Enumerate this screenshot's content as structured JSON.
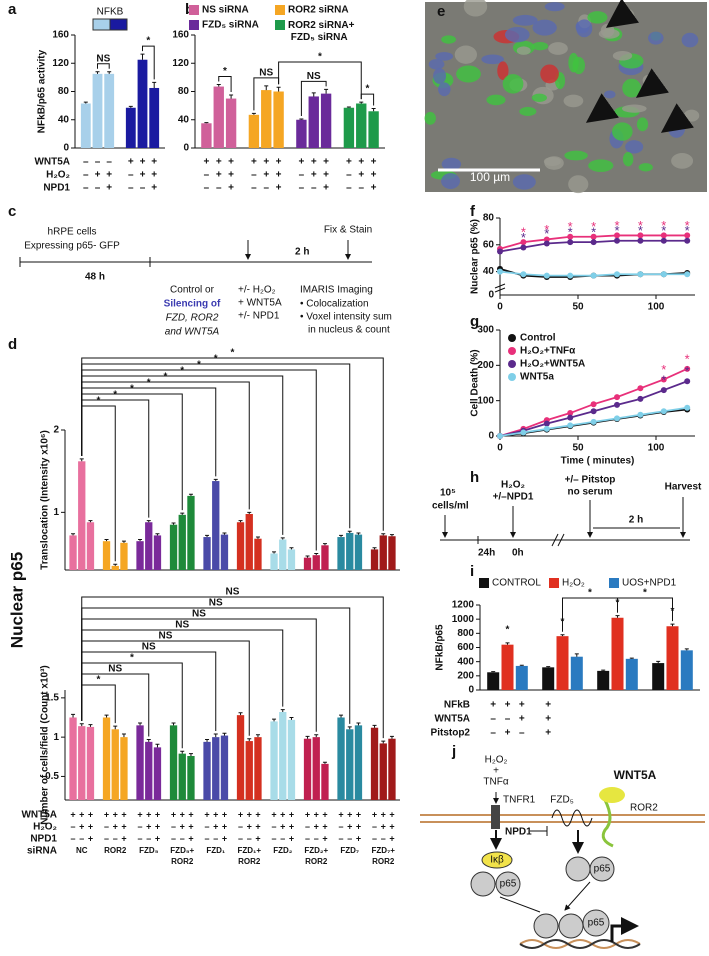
{
  "panel_labels": [
    "a",
    "b",
    "c",
    "d",
    "e",
    "f",
    "g",
    "h",
    "i",
    "j"
  ],
  "side_label": "Nuclear p65",
  "chart_data": [
    {
      "type": "bar",
      "ylabel": "NFkB/p65 activity",
      "ylim": [
        0,
        160
      ],
      "yticks": [
        0,
        40,
        80,
        120,
        160
      ],
      "values": [
        63,
        105,
        105,
        57,
        125,
        85
      ],
      "errors": [
        2,
        3,
        3,
        2,
        8,
        8
      ],
      "colors": [
        "#a8d0ea",
        "#a8d0ea",
        "#a8d0ea",
        "#1a1aa0",
        "#1a1aa0",
        "#1a1aa0"
      ],
      "legend_title": "NFKB",
      "annotations": [
        "NS",
        "*"
      ],
      "conditions": [
        {
          "label": "WNT5A",
          "marks": [
            "–",
            "–",
            "–",
            "+",
            "+",
            "+"
          ]
        },
        {
          "label": "H₂O₂",
          "marks": [
            "–",
            "+",
            "+",
            "–",
            "+",
            "+"
          ]
        },
        {
          "label": "NPD1",
          "marks": [
            "–",
            "–",
            "+",
            "–",
            "–",
            "+"
          ]
        }
      ]
    },
    {
      "type": "bar",
      "ylim": [
        0,
        160
      ],
      "yticks": [
        0,
        40,
        80,
        120,
        160
      ],
      "series": [
        {
          "name": "NS siRNA",
          "color": "#d0609a",
          "values": [
            35,
            87,
            70
          ],
          "errors": [
            1,
            3,
            5
          ]
        },
        {
          "name": "ROR2 siRNA",
          "color": "#f5a623",
          "values": [
            47,
            82,
            80
          ],
          "errors": [
            2,
            6,
            6
          ]
        },
        {
          "name": "FZD₅ siRNA",
          "color": "#6a2a9a",
          "values": [
            40,
            73,
            77
          ],
          "errors": [
            1,
            5,
            6
          ]
        },
        {
          "name": "ROR2 siRNA+ FZD₅ siRNA",
          "color": "#1e9a4a",
          "values": [
            57,
            63,
            52
          ],
          "errors": [
            1,
            2,
            4
          ]
        }
      ],
      "annotations": [
        "*",
        "NS",
        "NS",
        "*",
        "*"
      ],
      "conditions": [
        {
          "marks": [
            "+",
            "+",
            "+",
            "+",
            "+",
            "+",
            "+",
            "+",
            "+",
            "+",
            "+",
            "+"
          ]
        },
        {
          "marks": [
            "–",
            "+",
            "+",
            "–",
            "+",
            "+",
            "–",
            "+",
            "+",
            "–",
            "+",
            "+"
          ]
        },
        {
          "marks": [
            "–",
            "–",
            "+",
            "–",
            "–",
            "+",
            "–",
            "–",
            "+",
            "–",
            "–",
            "+"
          ]
        }
      ]
    },
    {
      "type": "bar",
      "ylabel": "Translocation (Intensity x10⁶)",
      "ylim": [
        0.3,
        2
      ],
      "yticks": [
        1,
        2
      ],
      "series": [
        {
          "color": "#e8709e",
          "values": [
            0.72,
            1.62,
            0.88
          ],
          "errors": [
            0.02,
            0.03,
            0.02
          ]
        },
        {
          "color": "#f5a623",
          "values": [
            0.65,
            0.35,
            0.63
          ],
          "errors": [
            0.02,
            0.02,
            0.02
          ]
        },
        {
          "color": "#7a2a9a",
          "values": [
            0.65,
            0.88,
            0.72
          ],
          "errors": [
            0.02,
            0.02,
            0.02
          ]
        },
        {
          "color": "#1e8a3a",
          "values": [
            0.85,
            0.97,
            1.2
          ],
          "errors": [
            0.02,
            0.02,
            0.02
          ]
        },
        {
          "color": "#4a4aa8",
          "values": [
            0.7,
            1.38,
            0.73
          ],
          "errors": [
            0.02,
            0.02,
            0.02
          ]
        },
        {
          "color": "#d43020",
          "values": [
            0.88,
            0.98,
            0.68
          ],
          "errors": [
            0.02,
            0.02,
            0.02
          ]
        },
        {
          "color": "#a8dce8",
          "values": [
            0.5,
            0.67,
            0.55
          ],
          "errors": [
            0.02,
            0.02,
            0.02
          ]
        },
        {
          "color": "#c02050",
          "values": [
            0.45,
            0.48,
            0.6
          ],
          "errors": [
            0.02,
            0.02,
            0.02
          ]
        },
        {
          "color": "#2a8aa0",
          "values": [
            0.7,
            0.75,
            0.73
          ],
          "errors": [
            0.02,
            0.02,
            0.02
          ]
        },
        {
          "color": "#a01a1a",
          "values": [
            0.55,
            0.72,
            0.71
          ],
          "errors": [
            0.02,
            0.02,
            0.02
          ]
        }
      ],
      "annotations": [
        "*",
        "*",
        "*",
        "*",
        "*",
        "*",
        "*",
        "*",
        "*"
      ]
    },
    {
      "type": "bar",
      "ylabel": "Number of cells/field (Count x10³)",
      "ylim": [
        0.2,
        1.6
      ],
      "yticks": [
        0.5,
        1,
        1.5
      ],
      "series": [
        {
          "name": "NC",
          "color": "#e8709e",
          "values": [
            1.25,
            1.14,
            1.13
          ],
          "errors": [
            0.04,
            0.03,
            0.03
          ]
        },
        {
          "name": "ROR2",
          "color": "#f5a623",
          "values": [
            1.25,
            1.1,
            1.0
          ],
          "errors": [
            0.03,
            0.04,
            0.04
          ]
        },
        {
          "name": "FZD₅",
          "color": "#7a2a9a",
          "values": [
            1.15,
            0.94,
            0.87
          ],
          "errors": [
            0.03,
            0.03,
            0.04
          ]
        },
        {
          "name": "FZD₅+ROR2",
          "color": "#1e8a3a",
          "values": [
            1.15,
            0.79,
            0.76
          ],
          "errors": [
            0.03,
            0.03,
            0.03
          ]
        },
        {
          "name": "FZD₁",
          "color": "#4a4aa8",
          "values": [
            0.94,
            1.0,
            1.02
          ],
          "errors": [
            0.03,
            0.04,
            0.03
          ]
        },
        {
          "name": "FZD₁+ROR2",
          "color": "#d43020",
          "values": [
            1.28,
            0.95,
            1.0
          ],
          "errors": [
            0.03,
            0.03,
            0.03
          ]
        },
        {
          "name": "FZD₂",
          "color": "#a8dce8",
          "values": [
            1.2,
            1.32,
            1.22
          ],
          "errors": [
            0.03,
            0.03,
            0.03
          ]
        },
        {
          "name": "FZD₂+ROR2",
          "color": "#c02050",
          "values": [
            0.98,
            1.0,
            0.66
          ],
          "errors": [
            0.03,
            0.03,
            0.02
          ]
        },
        {
          "name": "FZD₇",
          "color": "#2a8aa0",
          "values": [
            1.25,
            1.1,
            1.15
          ],
          "errors": [
            0.03,
            0.03,
            0.03
          ]
        },
        {
          "name": "FZD₇+ROR2",
          "color": "#a01a1a",
          "values": [
            1.12,
            0.92,
            0.98
          ],
          "errors": [
            0.03,
            0.03,
            0.03
          ]
        }
      ],
      "annotations": [
        "NS",
        "NS",
        "NS",
        "NS",
        "NS",
        "NS",
        "*",
        "NS",
        "*"
      ],
      "group_label": "siRNA",
      "conditions": [
        {
          "label": "WNT5A",
          "marks": [
            "+",
            "+",
            "+",
            "+",
            "+",
            "+",
            "+",
            "+",
            "+",
            "+",
            "+",
            "+",
            "+",
            "+",
            "+",
            "+",
            "+",
            "+",
            "+",
            "+",
            "+",
            "+",
            "+",
            "+",
            "+",
            "+",
            "+",
            "+",
            "+",
            "+"
          ]
        },
        {
          "label": "H₂O₂",
          "marks": [
            "–",
            "+",
            "+",
            "–",
            "+",
            "+",
            "–",
            "+",
            "+",
            "–",
            "+",
            "+",
            "–",
            "+",
            "+",
            "–",
            "+",
            "+",
            "–",
            "+",
            "+",
            "–",
            "+",
            "+",
            "–",
            "+",
            "+",
            "–",
            "+",
            "+"
          ]
        },
        {
          "label": "NPD1",
          "marks": [
            "–",
            "–",
            "+",
            "–",
            "–",
            "+",
            "–",
            "–",
            "+",
            "–",
            "–",
            "+",
            "–",
            "–",
            "+",
            "–",
            "–",
            "+",
            "–",
            "–",
            "+",
            "–",
            "–",
            "+",
            "–",
            "–",
            "+",
            "–",
            "–",
            "+"
          ]
        }
      ]
    },
    {
      "type": "line",
      "ylabel": "Nuclear p65 (%)",
      "xlim": [
        0,
        125
      ],
      "xticks": [
        0,
        50,
        100
      ],
      "ylim": [
        30,
        80
      ],
      "yticks": [
        40,
        60,
        80
      ],
      "ybreak_tick": 0,
      "significance": "*",
      "x": [
        0,
        15,
        30,
        45,
        60,
        75,
        90,
        105,
        120
      ],
      "series": [
        {
          "color": "#111111",
          "values": [
            42,
            37,
            36,
            36,
            37,
            37,
            38,
            38,
            39
          ]
        },
        {
          "color": "#e8307a",
          "values": [
            57,
            62,
            64,
            66,
            66,
            67,
            67,
            67,
            67
          ]
        },
        {
          "color": "#5b2a8c",
          "values": [
            55,
            58,
            61,
            62,
            62,
            63,
            63,
            63,
            63
          ]
        },
        {
          "color": "#7fcfe8",
          "values": [
            40,
            38,
            37,
            37,
            37,
            38,
            38,
            38,
            38
          ]
        }
      ]
    },
    {
      "type": "line",
      "ylabel": "Cell Death (%)",
      "xlabel": "Time ( minutes)",
      "xlim": [
        0,
        125
      ],
      "xticks": [
        0,
        50,
        100
      ],
      "ylim": [
        0,
        300
      ],
      "yticks": [
        0,
        100,
        200,
        300
      ],
      "significance": "*",
      "x": [
        0,
        15,
        30,
        45,
        60,
        75,
        90,
        105,
        120
      ],
      "series": [
        {
          "name": "Control",
          "color": "#111111",
          "values": [
            0,
            8,
            18,
            28,
            38,
            48,
            58,
            68,
            75
          ]
        },
        {
          "name": "H₂O₂+TNFα",
          "color": "#e8307a",
          "values": [
            0,
            20,
            45,
            65,
            90,
            110,
            135,
            160,
            190
          ]
        },
        {
          "name": "H₂O₂+WNT5A",
          "color": "#5b2a8c",
          "values": [
            0,
            15,
            35,
            52,
            70,
            88,
            105,
            130,
            155
          ]
        },
        {
          "name": "WNT5a",
          "color": "#7fcfe8",
          "values": [
            0,
            10,
            20,
            30,
            40,
            50,
            60,
            70,
            80
          ]
        }
      ]
    },
    {
      "type": "bar",
      "ylabel": "NFkB/p65",
      "ylim": [
        0,
        1200
      ],
      "yticks": [
        0,
        200,
        400,
        600,
        800,
        1000,
        1200
      ],
      "series": [
        {
          "name": "CONTROL",
          "color": "#111111",
          "values": [
            250,
            320,
            270,
            380
          ],
          "errors": [
            10,
            10,
            10,
            25
          ]
        },
        {
          "name": "H₂O₂",
          "color": "#e03020",
          "values": [
            640,
            760,
            1020,
            900
          ],
          "errors": [
            25,
            20,
            30,
            30
          ]
        },
        {
          "name": "UOS+NPD1",
          "color": "#2a7ac0",
          "values": [
            340,
            470,
            440,
            560
          ],
          "errors": [
            10,
            40,
            10,
            20
          ]
        }
      ],
      "annotations": [
        "*",
        "*",
        "*",
        "*",
        "*",
        "*"
      ],
      "conditions": [
        {
          "label": "NFkB",
          "marks": [
            "+",
            "+",
            "+",
            "+"
          ]
        },
        {
          "label": "WNT5A",
          "marks": [
            "–",
            "–",
            "+",
            "+"
          ]
        },
        {
          "label": "Pitstop2",
          "marks": [
            "–",
            "+",
            "–",
            "+"
          ]
        }
      ]
    }
  ],
  "c": [
    "hRPE cells",
    "Expressing p65- GFP",
    "48 h",
    "Control or",
    "Silencing of",
    "FZD, ROR2",
    "and WNT5A",
    "+/- H₂O₂",
    "+ WNT5A",
    "+/- NPD1",
    "2 h",
    "Fix & Stain",
    "IMARIS Imaging",
    "• Colocalization",
    "• Voxel intensity sum",
    "in nucleus & count"
  ],
  "e": [
    "100 µm"
  ],
  "h": [
    "10⁵",
    "cells/ml",
    "H₂O₂",
    "+/–NPD1",
    "24h",
    "0h",
    "+/– Pitstop",
    "no serum",
    "2 h",
    "Harvest"
  ],
  "j": [
    "H₂O₂",
    "+",
    "TNFα",
    "TNFR1",
    "NPD1",
    "FZD₅",
    "WNT5A",
    "ROR2",
    "Iκβ",
    "p65",
    "p65",
    "p65"
  ]
}
